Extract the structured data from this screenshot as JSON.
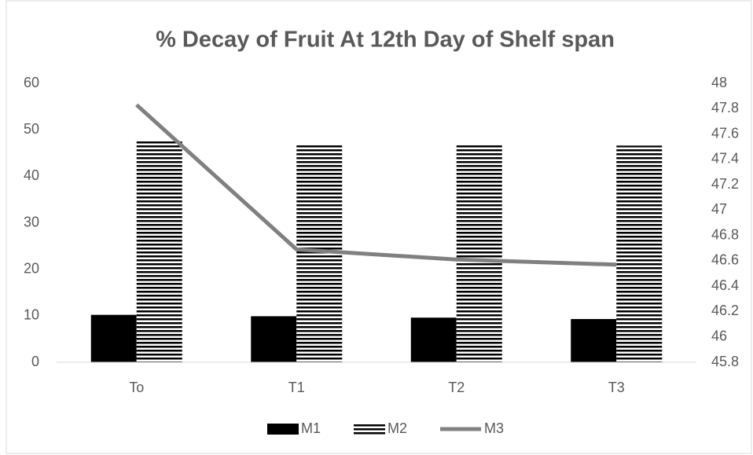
{
  "chart_data": {
    "type": "bar",
    "title": "% Decay of Fruit At 12th Day of Shelf span",
    "categories": [
      "To",
      "T1",
      "T2",
      "T3"
    ],
    "series": [
      {
        "name": "M1",
        "color": "#000000",
        "values": [
          10.2,
          9.9,
          9.6,
          9.3
        ]
      },
      {
        "name": "M2",
        "color": "#000000",
        "pattern": "horizontal-stripes",
        "values": [
          47.8,
          46.8,
          46.7,
          46.6
        ]
      },
      {
        "name": "M3",
        "color": "#808080",
        "type": "line",
        "axis": "y2",
        "values": [
          47.83,
          46.69,
          46.61,
          46.57
        ]
      }
    ],
    "ylim": [
      0,
      60
    ],
    "yticks": [
      0,
      10,
      20,
      30,
      40,
      50,
      60
    ],
    "y2lim": [
      45.8,
      48
    ],
    "y2ticks": [
      45.8,
      46,
      46.2,
      46.4,
      46.6,
      46.8,
      47,
      47.2,
      47.4,
      47.6,
      47.8,
      48
    ],
    "grid": false,
    "legend": "bottom"
  }
}
